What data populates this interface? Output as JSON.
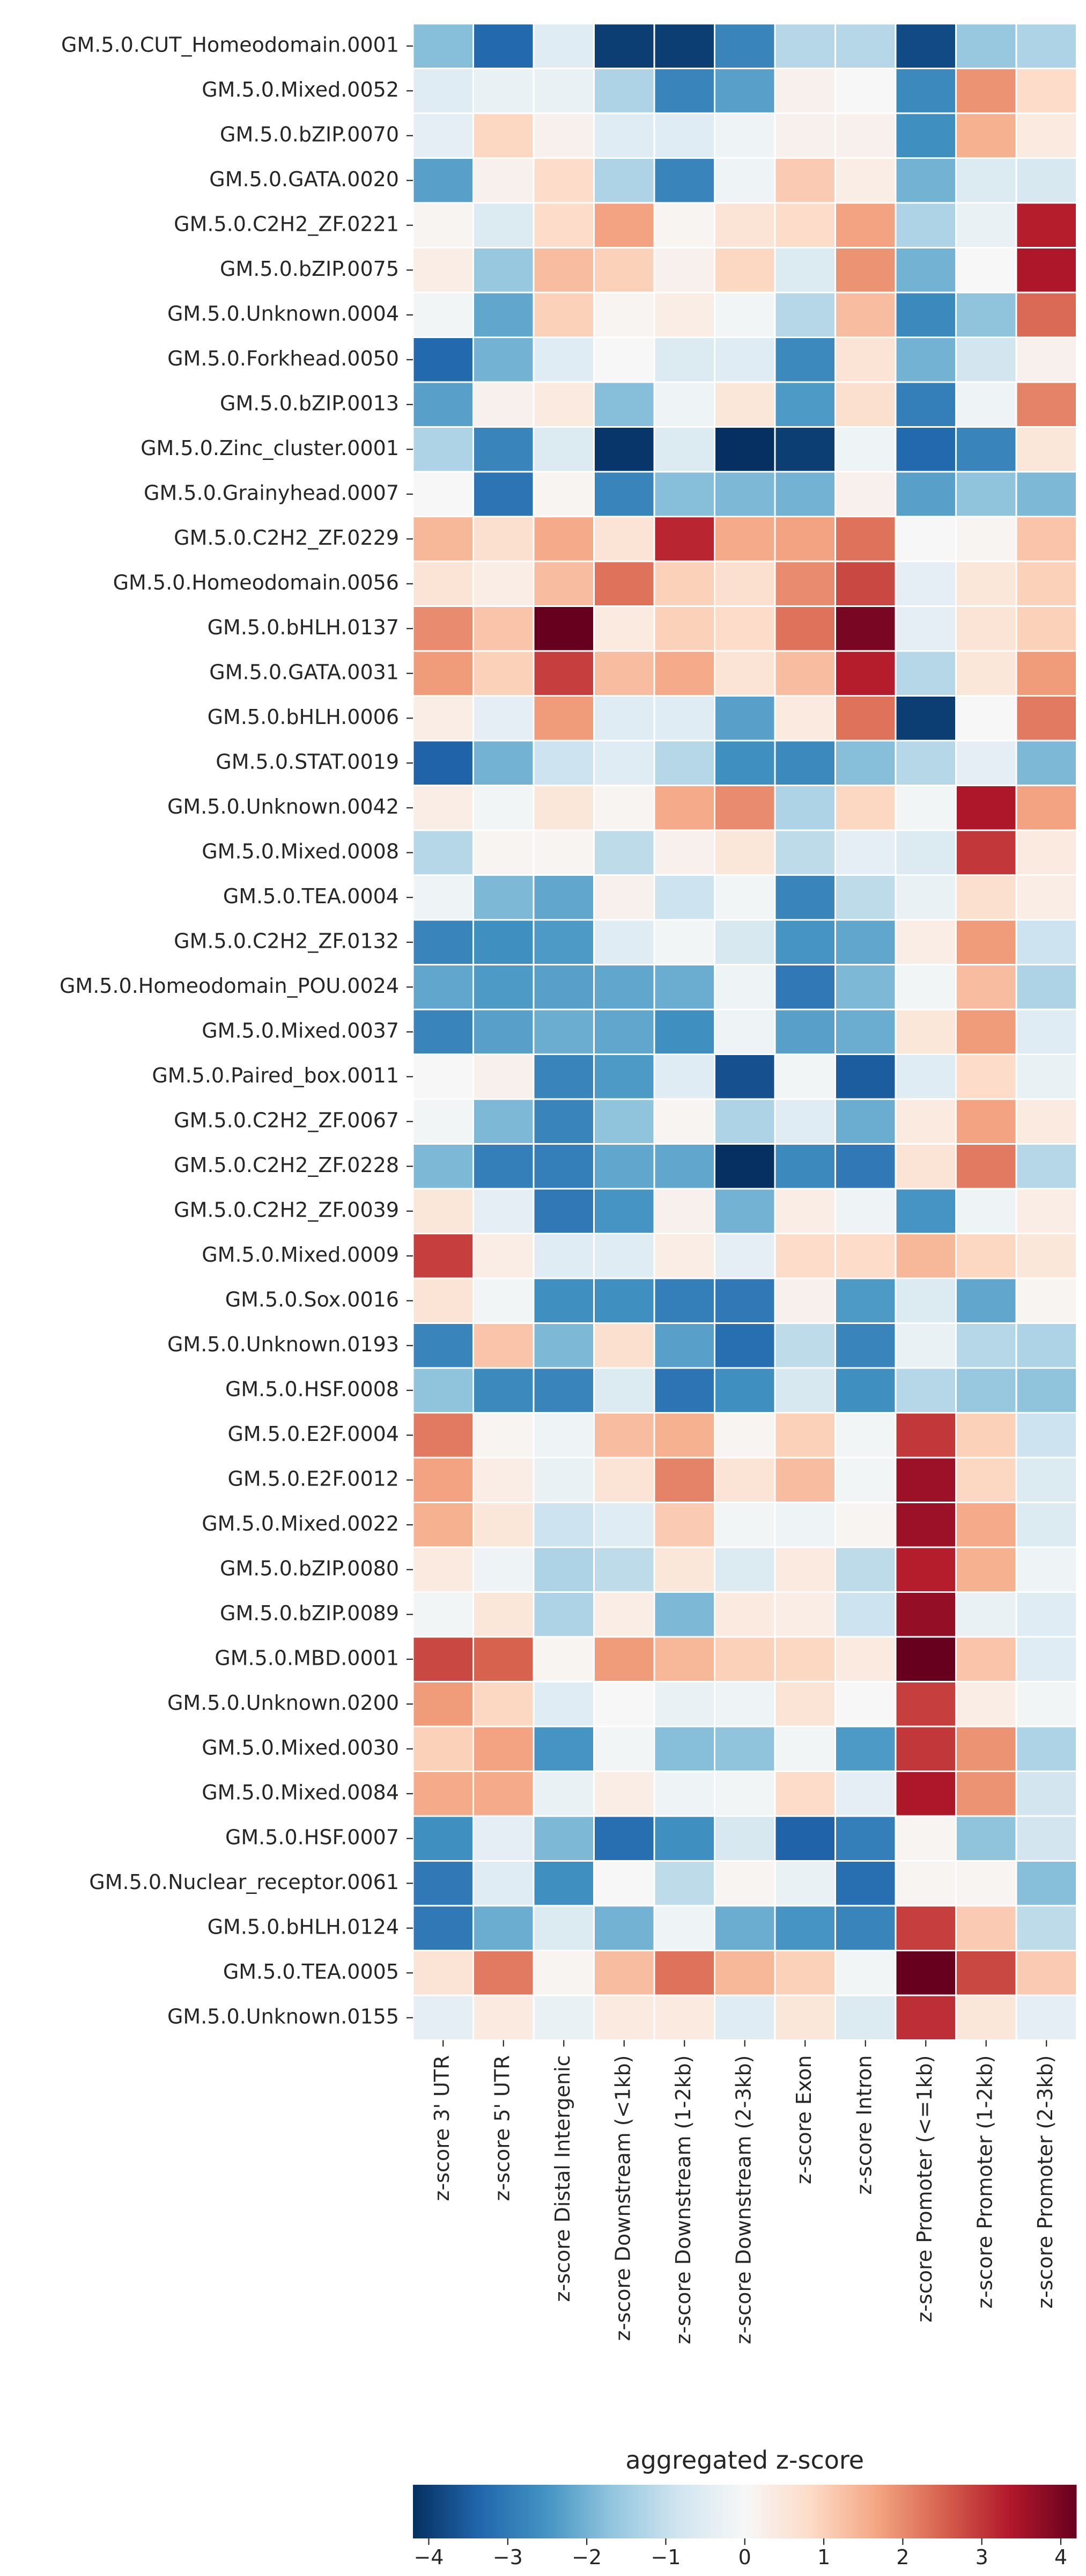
{
  "chart_data": {
    "type": "heatmap",
    "title": "",
    "colorbar": {
      "label": "aggregated z-score",
      "vmin": -4.2,
      "vmax": 4.2,
      "ticks": [
        -4,
        -3,
        -2,
        -1,
        0,
        1,
        2,
        3,
        4
      ],
      "tick_labels": [
        "−4",
        "−3",
        "−2",
        "−1",
        "0",
        "1",
        "2",
        "3",
        "4"
      ],
      "colormap": "RdBu_r",
      "colormap_stops": [
        "#053061",
        "#2166ac",
        "#4393c3",
        "#92c5de",
        "#d1e5f0",
        "#f7f7f7",
        "#fddbc7",
        "#f4a582",
        "#d6604d",
        "#b2182b",
        "#67001f"
      ],
      "placement": "bottom"
    },
    "columns": [
      "z-score 3' UTR",
      "z-score 5' UTR",
      "z-score Distal Intergenic",
      "z-score Downstream (<1kb)",
      "z-score Downstream (1-2kb)",
      "z-score Downstream (2-3kb)",
      "z-score Exon",
      "z-score Intron",
      "z-score Promoter (<=1kb)",
      "z-score Promoter (1-2kb)",
      "z-score Promoter (2-3kb)"
    ],
    "rows": [
      "GM.5.0.CUT_Homeodomain.0001",
      "GM.5.0.Mixed.0052",
      "GM.5.0.bZIP.0070",
      "GM.5.0.GATA.0020",
      "GM.5.0.C2H2_ZF.0221",
      "GM.5.0.bZIP.0075",
      "GM.5.0.Unknown.0004",
      "GM.5.0.Forkhead.0050",
      "GM.5.0.bZIP.0013",
      "GM.5.0.Zinc_cluster.0001",
      "GM.5.0.Grainyhead.0007",
      "GM.5.0.C2H2_ZF.0229",
      "GM.5.0.Homeodomain.0056",
      "GM.5.0.bHLH.0137",
      "GM.5.0.GATA.0031",
      "GM.5.0.bHLH.0006",
      "GM.5.0.STAT.0019",
      "GM.5.0.Unknown.0042",
      "GM.5.0.Mixed.0008",
      "GM.5.0.TEA.0004",
      "GM.5.0.C2H2_ZF.0132",
      "GM.5.0.Homeodomain_POU.0024",
      "GM.5.0.Mixed.0037",
      "GM.5.0.Paired_box.0011",
      "GM.5.0.C2H2_ZF.0067",
      "GM.5.0.C2H2_ZF.0228",
      "GM.5.0.C2H2_ZF.0039",
      "GM.5.0.Mixed.0009",
      "GM.5.0.Sox.0016",
      "GM.5.0.Unknown.0193",
      "GM.5.0.HSF.0008",
      "GM.5.0.E2F.0004",
      "GM.5.0.E2F.0012",
      "GM.5.0.Mixed.0022",
      "GM.5.0.bZIP.0080",
      "GM.5.0.bZIP.0089",
      "GM.5.0.MBD.0001",
      "GM.5.0.Unknown.0200",
      "GM.5.0.Mixed.0030",
      "GM.5.0.Mixed.0084",
      "GM.5.0.HSF.0007",
      "GM.5.0.Nuclear_receptor.0061",
      "GM.5.0.bHLH.0124",
      "GM.5.0.TEA.0005",
      "GM.5.0.Unknown.0155"
    ],
    "values": [
      [
        -1.8,
        -3.3,
        -0.5,
        -4.0,
        -4.0,
        -2.8,
        -1.2,
        -1.2,
        -3.8,
        -1.6,
        -1.3
      ],
      [
        -0.5,
        -0.3,
        -0.3,
        -1.3,
        -2.8,
        -2.3,
        0.2,
        0.0,
        -2.7,
        1.9,
        0.8
      ],
      [
        -0.4,
        0.9,
        0.2,
        -0.5,
        -0.5,
        -0.2,
        0.2,
        0.2,
        -2.6,
        1.5,
        0.4
      ],
      [
        -2.3,
        0.2,
        0.8,
        -1.3,
        -2.8,
        -0.2,
        1.1,
        0.3,
        -2.0,
        -0.6,
        -0.7
      ],
      [
        0.1,
        -0.6,
        0.8,
        1.7,
        0.1,
        0.6,
        0.8,
        1.7,
        -1.3,
        -0.3,
        3.3
      ],
      [
        0.3,
        -1.6,
        1.3,
        1.0,
        0.2,
        0.9,
        -0.6,
        1.9,
        -2.0,
        0.0,
        3.4
      ],
      [
        -0.1,
        -2.2,
        1.0,
        0.1,
        0.3,
        -0.1,
        -1.2,
        1.3,
        -2.7,
        -1.7,
        2.4
      ],
      [
        -3.3,
        -2.0,
        -0.5,
        0.0,
        -0.6,
        -0.5,
        -2.7,
        0.6,
        -2.0,
        -0.8,
        0.2
      ],
      [
        -2.3,
        0.2,
        0.4,
        -1.8,
        -0.2,
        0.5,
        -2.4,
        0.7,
        -2.9,
        -0.2,
        2.1
      ],
      [
        -1.3,
        -2.8,
        -0.6,
        -4.1,
        -0.6,
        -4.2,
        -4.0,
        -0.2,
        -3.3,
        -2.8,
        0.5
      ],
      [
        0.0,
        -3.1,
        0.1,
        -2.8,
        -1.8,
        -1.9,
        -2.0,
        0.2,
        -2.3,
        -1.7,
        -1.9
      ],
      [
        1.4,
        0.7,
        1.6,
        0.6,
        3.2,
        1.6,
        1.7,
        2.3,
        0.0,
        0.1,
        1.2
      ],
      [
        0.6,
        0.3,
        1.3,
        2.3,
        1.0,
        0.7,
        2.0,
        2.8,
        -0.4,
        0.5,
        1.0
      ],
      [
        2.0,
        1.2,
        4.2,
        0.4,
        1.0,
        0.8,
        2.3,
        4.0,
        -0.4,
        0.6,
        1.0
      ],
      [
        1.8,
        1.0,
        2.9,
        1.3,
        1.6,
        0.6,
        1.3,
        3.3,
        -1.2,
        0.5,
        1.8
      ],
      [
        0.3,
        -0.4,
        1.8,
        -0.5,
        -0.5,
        -2.3,
        0.4,
        2.3,
        -4.0,
        0.0,
        2.2
      ],
      [
        -3.4,
        -2.0,
        -0.9,
        -0.5,
        -1.2,
        -2.6,
        -2.7,
        -1.8,
        -1.2,
        -0.4,
        -1.9
      ],
      [
        0.3,
        -0.1,
        0.5,
        0.1,
        1.6,
        2.0,
        -1.3,
        0.9,
        -0.1,
        3.4,
        1.7
      ],
      [
        -1.2,
        0.1,
        0.1,
        -1.1,
        0.2,
        0.5,
        -1.1,
        -0.4,
        -0.6,
        3.0,
        0.4
      ],
      [
        -0.2,
        -1.9,
        -2.2,
        0.2,
        -0.9,
        -0.1,
        -2.8,
        -1.1,
        -0.3,
        0.7,
        0.3
      ],
      [
        -2.8,
        -2.6,
        -2.4,
        -0.5,
        -0.1,
        -0.7,
        -2.5,
        -2.2,
        0.3,
        1.8,
        -0.9
      ],
      [
        -2.2,
        -2.4,
        -2.3,
        -2.2,
        -2.1,
        -0.2,
        -3.0,
        -1.9,
        -0.1,
        1.3,
        -1.3
      ],
      [
        -2.8,
        -2.3,
        -2.1,
        -2.2,
        -2.6,
        -0.2,
        -2.3,
        -2.1,
        0.5,
        1.8,
        -0.5
      ],
      [
        0.0,
        0.2,
        -2.8,
        -2.4,
        -0.5,
        -3.7,
        -0.1,
        -3.5,
        -0.5,
        0.8,
        -0.3
      ],
      [
        -0.1,
        -1.9,
        -2.8,
        -1.7,
        0.1,
        -1.3,
        -0.5,
        -2.1,
        0.4,
        1.7,
        0.4
      ],
      [
        -1.9,
        -2.9,
        -2.9,
        -2.2,
        -2.2,
        -4.2,
        -2.7,
        -3.0,
        0.6,
        2.2,
        -1.2
      ],
      [
        0.5,
        -0.4,
        -3.0,
        -2.5,
        0.2,
        -2.0,
        0.3,
        -0.2,
        -2.5,
        -0.2,
        0.3
      ],
      [
        2.9,
        0.3,
        -0.5,
        -0.5,
        0.3,
        -0.4,
        0.8,
        0.8,
        1.4,
        0.9,
        0.5
      ],
      [
        0.6,
        -0.1,
        -2.6,
        -2.6,
        -2.9,
        -3.0,
        0.2,
        -2.4,
        -0.6,
        -2.2,
        0.1
      ],
      [
        -2.8,
        1.2,
        -1.9,
        0.7,
        -2.3,
        -3.2,
        -1.1,
        -2.8,
        -0.3,
        -1.2,
        -1.3
      ],
      [
        -1.7,
        -2.7,
        -2.8,
        -0.6,
        -3.1,
        -2.6,
        -0.7,
        -2.6,
        -1.2,
        -1.6,
        -1.7
      ],
      [
        2.2,
        0.1,
        -0.2,
        1.3,
        1.5,
        0.1,
        1.0,
        -0.1,
        3.0,
        1.0,
        -0.9
      ],
      [
        1.7,
        0.3,
        -0.3,
        0.6,
        2.1,
        0.6,
        1.3,
        -0.1,
        3.6,
        0.9,
        -0.6
      ],
      [
        1.5,
        0.5,
        -0.9,
        -0.5,
        1.1,
        -0.1,
        -0.2,
        0.1,
        3.6,
        1.6,
        -0.6
      ],
      [
        0.4,
        -0.2,
        -1.3,
        -1.1,
        0.5,
        -0.6,
        0.4,
        -1.1,
        3.3,
        1.5,
        -0.2
      ],
      [
        -0.1,
        0.5,
        -1.3,
        0.3,
        -1.9,
        0.4,
        0.3,
        -0.9,
        3.7,
        -0.3,
        -0.5
      ],
      [
        2.8,
        2.5,
        0.1,
        1.8,
        1.4,
        1.0,
        0.9,
        0.4,
        4.2,
        1.2,
        -0.5
      ],
      [
        1.8,
        0.9,
        -0.5,
        0.0,
        -0.3,
        -0.2,
        0.6,
        0.0,
        2.9,
        0.3,
        -0.1
      ],
      [
        1.0,
        1.7,
        -2.5,
        -0.1,
        -1.8,
        -1.7,
        -0.1,
        -2.4,
        3.0,
        1.9,
        -1.3
      ],
      [
        1.6,
        1.6,
        -0.3,
        0.3,
        -0.2,
        -0.1,
        0.8,
        -0.4,
        3.4,
        1.9,
        -0.8
      ],
      [
        -2.6,
        -0.4,
        -1.9,
        -3.2,
        -2.6,
        -0.7,
        -3.4,
        -2.9,
        0.1,
        -1.7,
        -0.8
      ],
      [
        -3.0,
        -0.5,
        -2.6,
        0.0,
        -1.1,
        0.1,
        -0.3,
        -3.2,
        0.1,
        0.1,
        -1.8
      ],
      [
        -3.0,
        -2.1,
        -0.6,
        -2.0,
        -0.2,
        -2.1,
        -2.5,
        -2.8,
        2.9,
        1.1,
        -1.1
      ],
      [
        0.6,
        2.2,
        0.1,
        1.3,
        2.3,
        1.4,
        1.0,
        -0.1,
        4.2,
        2.8,
        1.1
      ],
      [
        -0.4,
        0.4,
        -0.3,
        0.4,
        0.4,
        -0.5,
        0.5,
        -0.6,
        3.1,
        0.5,
        -0.4
      ]
    ]
  }
}
